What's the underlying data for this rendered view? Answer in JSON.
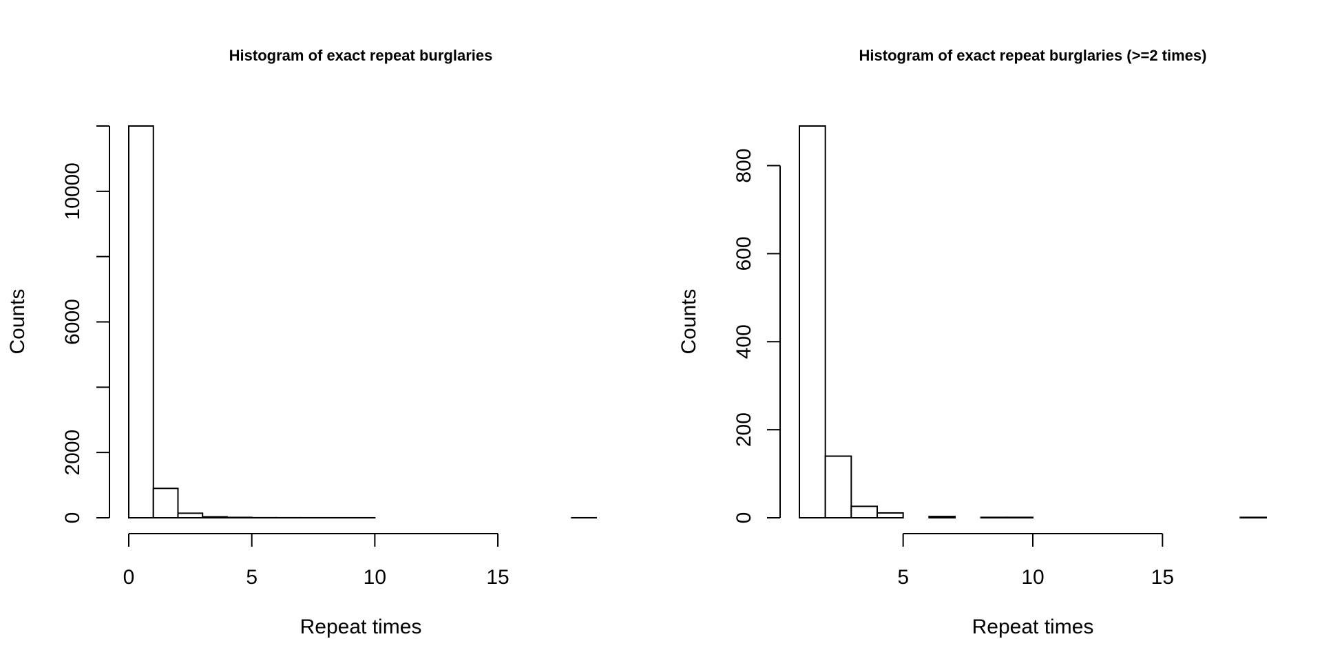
{
  "chart_data": [
    {
      "type": "bar",
      "title": "Histogram of exact repeat burglaries",
      "xlabel": "Repeat times",
      "ylabel": "Counts",
      "bin_edges": [
        0,
        1,
        2,
        3,
        4,
        5,
        6,
        7,
        8,
        9,
        10,
        11,
        12,
        13,
        14,
        15,
        16,
        17,
        18,
        19
      ],
      "values": [
        12000,
        900,
        140,
        30,
        12,
        3,
        2,
        1,
        1,
        1,
        0,
        0,
        0,
        0,
        0,
        0,
        0,
        0,
        1
      ],
      "xlim": [
        0,
        19
      ],
      "ylim": [
        0,
        12000
      ],
      "x_ticks": [
        0,
        5,
        10,
        15
      ],
      "x_tick_labels": [
        "0",
        "5",
        "10",
        "15"
      ],
      "y_ticks": [
        0,
        2000,
        4000,
        6000,
        8000,
        10000,
        12000
      ],
      "y_tick_labels": [
        "0",
        "2000",
        "",
        "6000",
        "",
        "10000",
        ""
      ],
      "grid": false
    },
    {
      "type": "bar",
      "title": "Histogram of exact repeat burglaries (>=2 times)",
      "xlabel": "Repeat times",
      "ylabel": "Counts",
      "bin_edges": [
        1,
        2,
        3,
        4,
        5,
        6,
        7,
        8,
        9,
        10,
        11,
        12,
        13,
        14,
        15,
        16,
        17,
        18,
        19
      ],
      "values": [
        890,
        140,
        26,
        11,
        0,
        3,
        0,
        1,
        1,
        0,
        0,
        0,
        0,
        0,
        0,
        0,
        0,
        1
      ],
      "xlim": [
        1,
        19
      ],
      "ylim": [
        0,
        890
      ],
      "x_ticks": [
        5,
        10,
        15
      ],
      "x_tick_labels": [
        "5",
        "10",
        "15"
      ],
      "y_ticks": [
        0,
        200,
        400,
        600,
        800
      ],
      "y_tick_labels": [
        "0",
        "200",
        "400",
        "600",
        "800"
      ],
      "grid": false
    }
  ]
}
